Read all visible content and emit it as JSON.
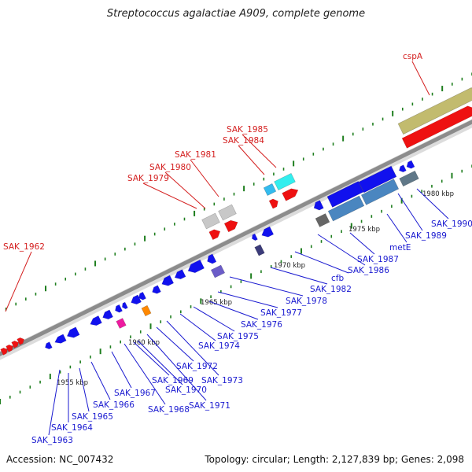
{
  "title": "Streptococcus agalactiae A909, complete genome",
  "footer": {
    "accession": "Accession: NC_007432",
    "summary": "Topology: circular; Length: 2,127,839 bp; Genes: 2,098"
  },
  "colors": {
    "forward_label": "#d42020",
    "reverse_label": "#1a1ad0",
    "backbone": "#8c8c8c",
    "tick": "#1e7e1e"
  },
  "scale_labels": [
    "1955 kbp",
    "1960 kbp",
    "1965 kbp",
    "1970 kbp",
    "1975 kbp",
    "1980 kbp"
  ],
  "forward_genes": [
    "SAK_1962",
    "SAK_1979",
    "SAK_1980",
    "SAK_1981",
    "SAK_1984",
    "SAK_1985",
    "cspA"
  ],
  "reverse_genes": [
    "SAK_1963",
    "SAK_1964",
    "SAK_1965",
    "SAK_1966",
    "SAK_1967",
    "SAK_1968",
    "SAK_1969",
    "SAK_1970",
    "SAK_1971",
    "SAK_1972",
    "SAK_1973",
    "SAK_1974",
    "SAK_1975",
    "SAK_1976",
    "SAK_1977",
    "SAK_1978",
    "SAK_1982",
    "cfb",
    "SAK_1986",
    "SAK_1987",
    "metE",
    "SAK_1989",
    "SAK_1990"
  ]
}
